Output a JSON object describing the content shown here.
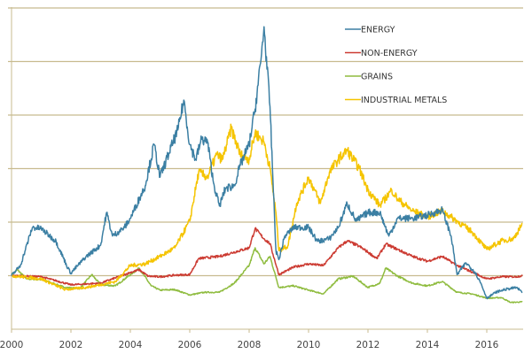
{
  "chart_data": {
    "type": "line",
    "title": "",
    "xlabel": "",
    "ylabel": "",
    "xlim": [
      2000,
      2017.2
    ],
    "ylim": [
      0,
      600
    ],
    "x_ticks": [
      "2000",
      "2002",
      "2004",
      "2006",
      "2008",
      "2010",
      "2012",
      "2014",
      "2016"
    ],
    "y_gridlines": [
      100,
      200,
      300,
      400,
      500,
      600
    ],
    "grid": true,
    "legend_position": "top-right",
    "series": [
      {
        "name": "ENERGY",
        "color": "#3b7fa3",
        "x": [
          2000,
          2000.3,
          2000.7,
          2001,
          2001.5,
          2001.9,
          2002,
          2002.5,
          2003,
          2003.2,
          2003.4,
          2003.8,
          2004,
          2004.5,
          2004.8,
          2005,
          2005.3,
          2005.6,
          2005.8,
          2006,
          2006.2,
          2006.4,
          2006.6,
          2006.8,
          2007,
          2007.2,
          2007.5,
          2007.7,
          2008,
          2008.2,
          2008.4,
          2008.5,
          2008.7,
          2008.9,
          2009,
          2009.2,
          2009.5,
          2010,
          2010.3,
          2010.7,
          2011,
          2011.3,
          2011.6,
          2012,
          2012.4,
          2012.7,
          2013,
          2013.5,
          2014,
          2014.5,
          2014.8,
          2015,
          2015.3,
          2015.6,
          2015.8,
          2016,
          2016.3,
          2016.6,
          2017,
          2017.2
        ],
        "y": [
          100,
          119,
          190,
          188,
          164,
          114,
          105,
          135,
          157,
          218,
          174,
          190,
          207,
          268,
          345,
          284,
          329,
          372,
          428,
          345,
          317,
          355,
          350,
          273,
          230,
          263,
          268,
          306,
          345,
          411,
          504,
          565,
          416,
          147,
          130,
          174,
          190,
          190,
          164,
          169,
          190,
          235,
          202,
          218,
          218,
          174,
          207,
          207,
          213,
          223,
          174,
          102,
          124,
          107,
          86,
          58,
          69,
          74,
          78,
          69
        ]
      },
      {
        "name": "NON-ENERGY",
        "color": "#cc3b32",
        "x": [
          2000,
          2001,
          2002,
          2003,
          2004,
          2004.3,
          2004.6,
          2005,
          2005.5,
          2006,
          2006.3,
          2007,
          2007.5,
          2008,
          2008.2,
          2008.5,
          2008.7,
          2009,
          2009.5,
          2010,
          2010.5,
          2011,
          2011.3,
          2011.7,
          2012,
          2012.3,
          2012.6,
          2013,
          2013.5,
          2014,
          2014.5,
          2015,
          2015.5,
          2016,
          2016.5,
          2017,
          2017.2
        ],
        "y": [
          100,
          98,
          83,
          86,
          106,
          111,
          99,
          98,
          101,
          102,
          132,
          136,
          144,
          152,
          188,
          169,
          160,
          102,
          116,
          122,
          119,
          152,
          165,
          155,
          144,
          132,
          159,
          149,
          136,
          127,
          136,
          119,
          107,
          94,
          98,
          98,
          100
        ]
      },
      {
        "name": "GRAINS",
        "color": "#8fbc3f",
        "x": [
          2000,
          2000.2,
          2000.5,
          2001,
          2001.8,
          2002.3,
          2002.7,
          2003,
          2003.5,
          2004,
          2004.3,
          2004.7,
          2005,
          2005.5,
          2006,
          2006.5,
          2007,
          2007.5,
          2008,
          2008.2,
          2008.5,
          2008.7,
          2009,
          2009.5,
          2010,
          2010.5,
          2011,
          2011.5,
          2012,
          2012.4,
          2012.6,
          2013,
          2013.5,
          2014,
          2014.5,
          2015,
          2015.5,
          2016,
          2016.5,
          2016.8,
          2017.2
        ],
        "y": [
          102,
          111,
          94,
          93,
          78,
          76,
          102,
          83,
          81,
          102,
          114,
          81,
          73,
          74,
          64,
          69,
          69,
          86,
          119,
          152,
          122,
          136,
          78,
          81,
          73,
          66,
          94,
          99,
          78,
          86,
          114,
          99,
          86,
          81,
          89,
          69,
          66,
          58,
          59,
          50,
          51
        ]
      },
      {
        "name": "INDUSTRIAL METALS",
        "color": "#f5c400",
        "x": [
          2000,
          2001,
          2001.8,
          2002.5,
          2003,
          2003.5,
          2004,
          2004.5,
          2005,
          2005.5,
          2006,
          2006.3,
          2006.6,
          2006.9,
          2007.1,
          2007.4,
          2007.7,
          2008,
          2008.2,
          2008.5,
          2008.7,
          2008.9,
          2009,
          2009.3,
          2009.6,
          2010,
          2010.4,
          2010.7,
          2011,
          2011.3,
          2011.7,
          2012,
          2012.4,
          2012.8,
          2013,
          2013.5,
          2014,
          2014.5,
          2015,
          2015.5,
          2016,
          2016.5,
          2016.9,
          2017.2
        ],
        "y": [
          100,
          94,
          74,
          78,
          83,
          89,
          119,
          122,
          136,
          152,
          202,
          293,
          284,
          326,
          317,
          375,
          326,
          317,
          367,
          350,
          301,
          218,
          147,
          155,
          235,
          284,
          235,
          293,
          317,
          334,
          301,
          260,
          231,
          260,
          243,
          221,
          210,
          221,
          202,
          182,
          149,
          165,
          169,
          197
        ]
      }
    ]
  }
}
